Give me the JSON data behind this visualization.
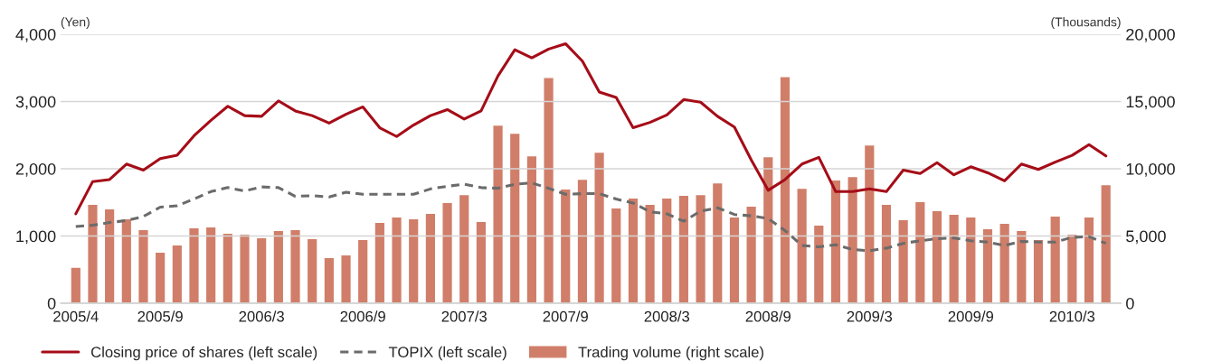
{
  "chart_data": {
    "type": "bar",
    "ylabel": "(Yen)",
    "y2label": "(Thousands)",
    "categories": [
      "2005/4",
      null,
      null,
      null,
      null,
      "2005/9",
      null,
      null,
      null,
      null,
      null,
      "2006/3",
      null,
      null,
      null,
      null,
      null,
      "2006/9",
      null,
      null,
      null,
      null,
      null,
      "2007/3",
      null,
      null,
      null,
      null,
      null,
      "2007/9",
      null,
      null,
      null,
      null,
      null,
      "2008/3",
      null,
      null,
      null,
      null,
      null,
      "2008/9",
      null,
      null,
      null,
      null,
      null,
      "2009/3",
      null,
      null,
      null,
      null,
      null,
      "2009/9",
      null,
      null,
      null,
      null,
      null,
      "2010/3",
      null,
      null
    ],
    "series": [
      {
        "name": "Closing price of shares (left scale)",
        "type": "line",
        "color": "#a50d18",
        "line_style": "solid",
        "values": [
          1330,
          1810,
          1840,
          2070,
          1980,
          2150,
          2200,
          2490,
          2720,
          2930,
          2790,
          2780,
          3010,
          2860,
          2790,
          2680,
          2810,
          2920,
          2610,
          2480,
          2650,
          2790,
          2880,
          2740,
          2860,
          3380,
          3770,
          3650,
          3780,
          3860,
          3600,
          3140,
          3060,
          2610,
          2690,
          2800,
          3030,
          2990,
          2780,
          2620,
          2130,
          1680,
          1840,
          2070,
          2170,
          1660,
          1660,
          1700,
          1660,
          1980,
          1930,
          2090,
          1910,
          2030,
          1940,
          1820,
          2070,
          1990,
          2100,
          2200,
          2360,
          2190
        ]
      },
      {
        "name": "TOPIX (left scale)",
        "type": "line",
        "color": "#6b6b6b",
        "line_style": "dashed",
        "values": [
          1140,
          1160,
          1200,
          1230,
          1290,
          1430,
          1450,
          1550,
          1660,
          1720,
          1670,
          1730,
          1720,
          1590,
          1600,
          1580,
          1650,
          1620,
          1620,
          1620,
          1620,
          1700,
          1740,
          1770,
          1720,
          1710,
          1770,
          1790,
          1710,
          1620,
          1630,
          1630,
          1550,
          1490,
          1360,
          1330,
          1220,
          1370,
          1420,
          1320,
          1300,
          1260,
          1080,
          860,
          840,
          870,
          800,
          780,
          820,
          890,
          930,
          960,
          970,
          930,
          910,
          860,
          920,
          910,
          910,
          980,
          990,
          890
        ]
      },
      {
        "name": "Trading volume (right scale)",
        "axis": "y2",
        "color": "#d07e69",
        "values": [
          2680,
          7360,
          7020,
          6290,
          5490,
          3810,
          4350,
          5620,
          5690,
          5220,
          5150,
          4880,
          5420,
          5490,
          4820,
          3410,
          3610,
          4750,
          6020,
          6420,
          6290,
          6690,
          7490,
          8090,
          6090,
          13250,
          12640,
          10970,
          16790,
          8500,
          9230,
          11240,
          7090,
          7830,
          7360,
          7830,
          8030,
          8090,
          8960,
          6420,
          7220,
          10900,
          16860,
          8560,
          5820,
          9170,
          9430,
          11770,
          7360,
          6220,
          7560,
          6890,
          6620,
          6420,
          5550,
          5950,
          5420,
          4750,
          6490,
          5150,
          6420,
          8830
        ]
      }
    ],
    "ylim": [
      0,
      4000
    ],
    "yticks": [
      0,
      {
        "value": 1000,
        "label": "1,000"
      },
      {
        "value": 2000,
        "label": "2,000"
      },
      {
        "value": 3000,
        "label": "3,000"
      },
      {
        "value": 4000,
        "label": "4,000"
      }
    ],
    "y2lim": [
      0,
      20000
    ],
    "y2ticks": [
      0,
      {
        "value": 5000,
        "label": "5,000"
      },
      {
        "value": 10000,
        "label": "10,000"
      },
      {
        "value": 15000,
        "label": "15,000"
      },
      {
        "value": 20000,
        "label": "20,000"
      }
    ],
    "grid": "y",
    "legend": "bottom"
  }
}
